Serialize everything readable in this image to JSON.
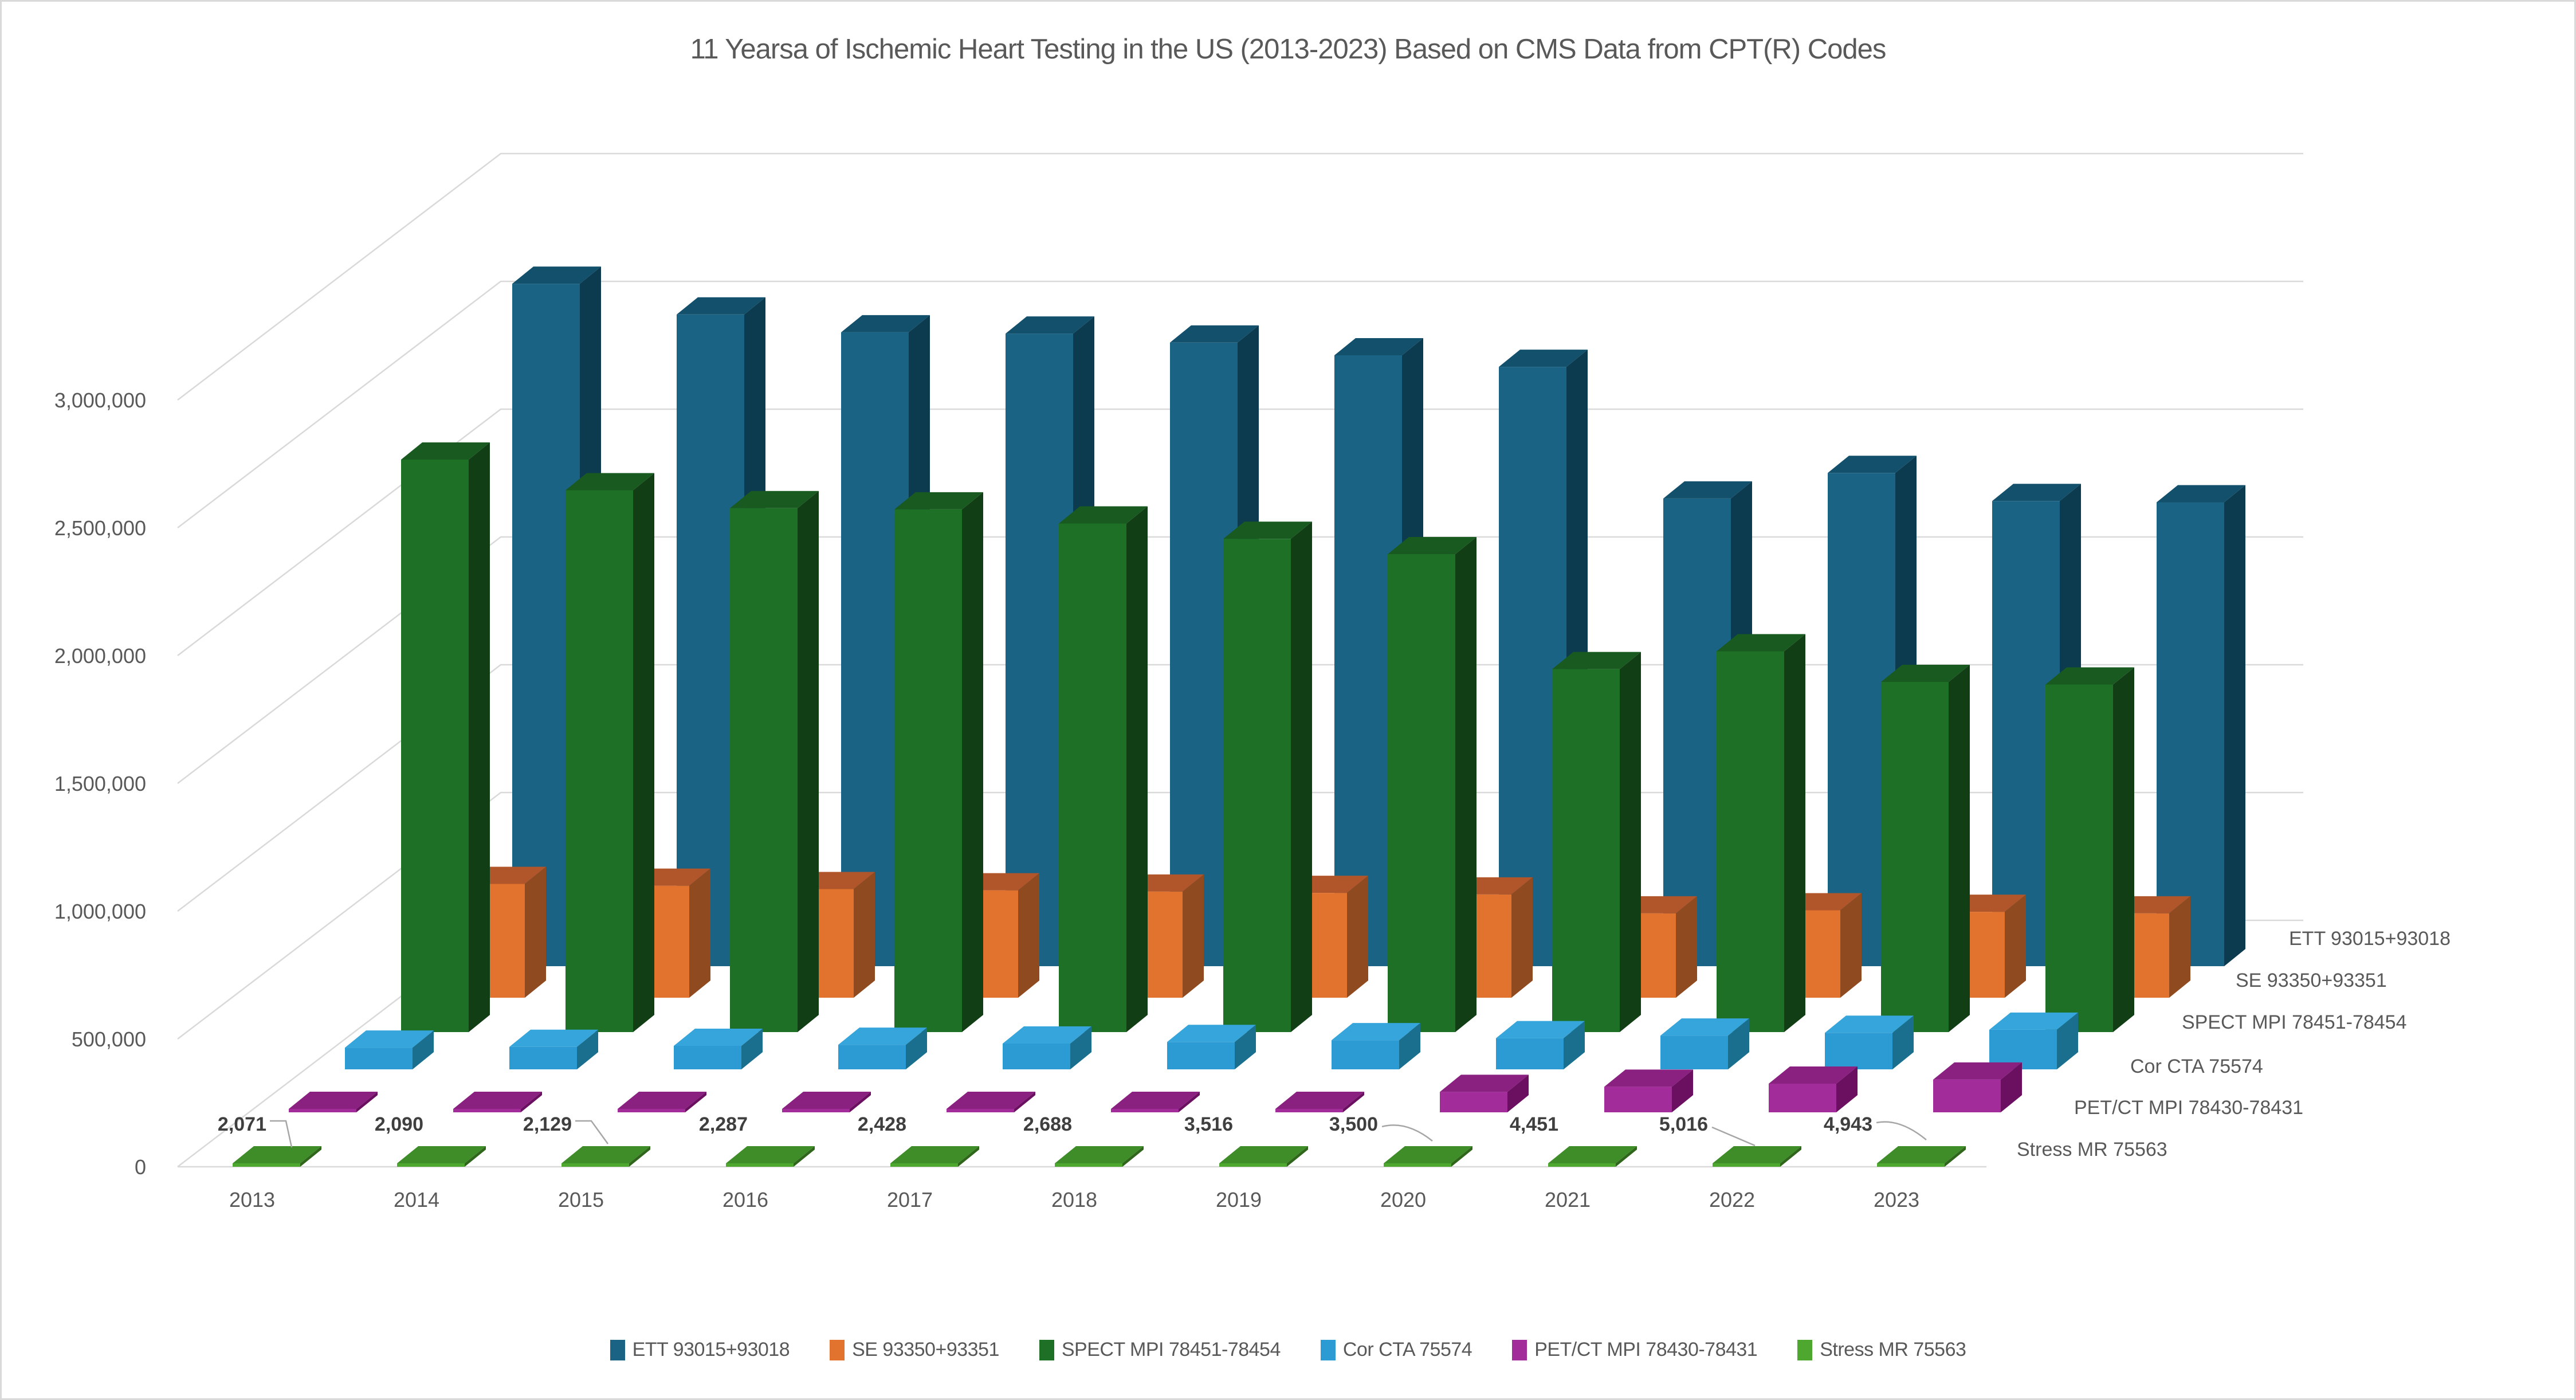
{
  "chart_data": {
    "type": "bar",
    "variant": "3d-column",
    "title": "11 Yearsa of Ischemic Heart Testing in the US (2013-2023) Based on CMS Data from CPT(R) Codes",
    "categories": [
      "2013",
      "2014",
      "2015",
      "2016",
      "2017",
      "2018",
      "2019",
      "2020",
      "2021",
      "2022",
      "2023"
    ],
    "y_axis": {
      "min": 0,
      "max": 3000000,
      "step": 500000,
      "tick_labels": [
        "0",
        "500,000",
        "1,000,000",
        "1,500,000",
        "2,000,000",
        "2,500,000",
        "3,000,000"
      ],
      "gridlines": true
    },
    "series": [
      {
        "name": "ETT 93015+93018",
        "color": "#1A6384",
        "color_top": "#12506C",
        "color_side": "#0C3B50",
        "values": [
          2670000,
          2550000,
          2480000,
          2475000,
          2440000,
          2390000,
          2345000,
          1830000,
          1930000,
          1820000,
          1815000
        ]
      },
      {
        "name": "SE 93350+93351",
        "color": "#E2732F",
        "color_top": "#B0562A",
        "color_side": "#8F4A20",
        "values": [
          445000,
          438000,
          425000,
          420000,
          415000,
          410000,
          404000,
          330000,
          342000,
          336000,
          330000
        ]
      },
      {
        "name": "SPECT MPI 78451-78454",
        "color": "#1E7026",
        "color_top": "#185A1F",
        "color_side": "#123E15",
        "values": [
          2240000,
          2120000,
          2050000,
          2045000,
          1990000,
          1930000,
          1870000,
          1420000,
          1490000,
          1370000,
          1360000
        ]
      },
      {
        "name": "Cor CTA 75574",
        "color": "#2D9BD3",
        "color_top": "#36A5DB",
        "color_side": "#1A6F8F",
        "values": [
          85000,
          88000,
          92000,
          96000,
          101000,
          107000,
          114000,
          122000,
          132000,
          143000,
          155000
        ]
      },
      {
        "name": "PET/CT MPI 78430-78431",
        "color": "#A22C9A",
        "color_top": "#8A2181",
        "color_side": "#6B1060",
        "values": [
          0,
          0,
          0,
          0,
          0,
          0,
          0,
          80000,
          100000,
          112000,
          128000
        ]
      },
      {
        "name": "Stress MR 75563",
        "color": "#4EA72E",
        "color_top": "#3F8D28",
        "color_side": "#2F661B",
        "values": [
          2071,
          2090,
          2129,
          2287,
          2428,
          2688,
          3516,
          3500,
          4451,
          5016,
          4943
        ],
        "data_labels": [
          "2,071",
          "2,090",
          "2,129",
          "2,287",
          "2,428",
          "2,688",
          "3,516",
          "3,500",
          "4,451",
          "5,016",
          "4,943"
        ]
      }
    ],
    "legend_position": "bottom",
    "colors": {
      "grid": "#D9D9D9",
      "axis_text": "#595959",
      "data_label_text": "#3F3F3F",
      "leader_line": "#A6A6A6",
      "background": "#FFFFFF"
    }
  }
}
